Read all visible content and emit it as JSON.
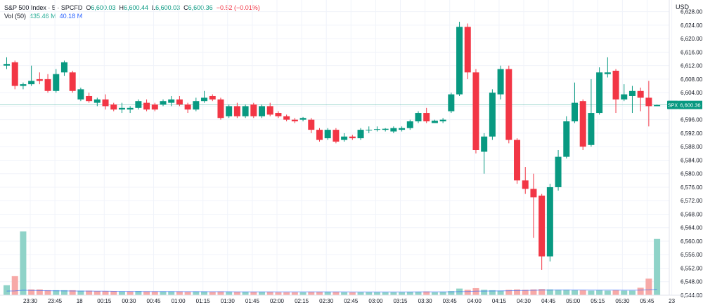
{
  "legend": {
    "symbol": "S&P 500 Index · 5 · SPCFD",
    "open_label": "O",
    "open": "6,600.03",
    "high_label": "H",
    "high": "6,600.44",
    "low_label": "L",
    "low": "6,600.03",
    "close_label": "C",
    "close": "6,600.36",
    "change": "−0.52 (−0.01%)",
    "vol_label": "Vol (50)",
    "vol_value": "435.46 M",
    "vol_ma": "40.18 M"
  },
  "currency": "USD",
  "price_tag": {
    "symbol": "SPX",
    "value": "6,600.36",
    "price": 6600.36
  },
  "colors": {
    "up": "#089981",
    "down": "#f23645",
    "vol_up": "#8fd3c8",
    "vol_down": "#f7a9a7",
    "grid": "#f0f3fa",
    "ma": "#2962ff"
  },
  "chart_data": {
    "type": "candlestick",
    "ylim": [
      6544,
      6630
    ],
    "y_ticks": [
      "6,628.00",
      "6,624.00",
      "6,620.00",
      "6,616.00",
      "6,612.00",
      "6,608.00",
      "6,604.00",
      "6,600.00",
      "6,596.00",
      "6,592.00",
      "6,588.00",
      "6,584.00",
      "6,580.00",
      "6,576.00",
      "6,572.00",
      "6,568.00",
      "6,564.00",
      "6,560.00",
      "6,556.00",
      "6,552.00",
      "6,548.00",
      "6,544.00"
    ],
    "x_ticks": [
      "23:30",
      "23:45",
      "18",
      "00:15",
      "00:30",
      "00:45",
      "01:00",
      "01:15",
      "01:30",
      "01:45",
      "02:00",
      "02:15",
      "02:30",
      "02:45",
      "03:00",
      "03:15",
      "03:30",
      "03:45",
      "04:00",
      "04:15",
      "04:30",
      "04:45",
      "05:00",
      "05:15",
      "05:30",
      "05:45",
      "23"
    ],
    "candles": [
      {
        "o": 6612.0,
        "h": 6614.5,
        "l": 6611.0,
        "c": 6612.5
      },
      {
        "o": 6613.0,
        "h": 6613.5,
        "l": 6605.0,
        "c": 6606.0
      },
      {
        "o": 6606.0,
        "h": 6607.0,
        "l": 6605.0,
        "c": 6606.5
      },
      {
        "o": 6606.5,
        "h": 6612.0,
        "l": 6606.0,
        "c": 6607.5
      },
      {
        "o": 6608.0,
        "h": 6610.0,
        "l": 6606.5,
        "c": 6607.5
      },
      {
        "o": 6608.0,
        "h": 6609.5,
        "l": 6604.0,
        "c": 6604.5
      },
      {
        "o": 6604.5,
        "h": 6611.0,
        "l": 6604.0,
        "c": 6609.5
      },
      {
        "o": 6610.0,
        "h": 6613.5,
        "l": 6609.0,
        "c": 6613.0
      },
      {
        "o": 6610.0,
        "h": 6610.5,
        "l": 6604.0,
        "c": 6604.5
      },
      {
        "o": 6602.0,
        "h": 6605.5,
        "l": 6601.5,
        "c": 6605.0
      },
      {
        "o": 6603.0,
        "h": 6604.0,
        "l": 6601.0,
        "c": 6601.5
      },
      {
        "o": 6601.0,
        "h": 6602.5,
        "l": 6600.0,
        "c": 6602.0
      },
      {
        "o": 6602.0,
        "h": 6603.5,
        "l": 6599.0,
        "c": 6600.0
      },
      {
        "o": 6600.5,
        "h": 6601.0,
        "l": 6598.5,
        "c": 6599.0
      },
      {
        "o": 6599.0,
        "h": 6601.0,
        "l": 6598.0,
        "c": 6599.5
      },
      {
        "o": 6599.0,
        "h": 6600.0,
        "l": 6598.0,
        "c": 6599.5
      },
      {
        "o": 6599.5,
        "h": 6602.0,
        "l": 6599.0,
        "c": 6601.5
      },
      {
        "o": 6601.0,
        "h": 6602.0,
        "l": 6598.5,
        "c": 6599.0
      },
      {
        "o": 6600.5,
        "h": 6601.0,
        "l": 6598.5,
        "c": 6599.0
      },
      {
        "o": 6600.5,
        "h": 6602.0,
        "l": 6600.0,
        "c": 6601.5
      },
      {
        "o": 6601.0,
        "h": 6603.0,
        "l": 6600.0,
        "c": 6602.0
      },
      {
        "o": 6602.0,
        "h": 6603.0,
        "l": 6600.0,
        "c": 6600.5
      },
      {
        "o": 6600.5,
        "h": 6601.0,
        "l": 6598.0,
        "c": 6599.0
      },
      {
        "o": 6599.0,
        "h": 6602.5,
        "l": 6598.5,
        "c": 6601.5
      },
      {
        "o": 6601.5,
        "h": 6604.5,
        "l": 6601.0,
        "c": 6602.5
      },
      {
        "o": 6603.0,
        "h": 6603.5,
        "l": 6601.5,
        "c": 6602.0
      },
      {
        "o": 6602.0,
        "h": 6602.5,
        "l": 6596.0,
        "c": 6596.5
      },
      {
        "o": 6597.0,
        "h": 6600.5,
        "l": 6596.5,
        "c": 6600.0
      },
      {
        "o": 6600.0,
        "h": 6601.0,
        "l": 6596.5,
        "c": 6597.0
      },
      {
        "o": 6597.0,
        "h": 6600.5,
        "l": 6596.5,
        "c": 6600.0
      },
      {
        "o": 6600.5,
        "h": 6601.0,
        "l": 6596.5,
        "c": 6597.0
      },
      {
        "o": 6597.0,
        "h": 6600.5,
        "l": 6596.5,
        "c": 6600.0
      },
      {
        "o": 6600.0,
        "h": 6601.0,
        "l": 6597.0,
        "c": 6597.5
      },
      {
        "o": 6598.0,
        "h": 6598.5,
        "l": 6596.5,
        "c": 6597.0
      },
      {
        "o": 6597.0,
        "h": 6597.5,
        "l": 6595.5,
        "c": 6596.0
      },
      {
        "o": 6596.0,
        "h": 6596.5,
        "l": 6595.0,
        "c": 6595.5
      },
      {
        "o": 6596.0,
        "h": 6596.8,
        "l": 6595.5,
        "c": 6596.5
      },
      {
        "o": 6596.0,
        "h": 6596.5,
        "l": 6592.0,
        "c": 6593.0
      },
      {
        "o": 6593.0,
        "h": 6593.5,
        "l": 6589.5,
        "c": 6590.0
      },
      {
        "o": 6590.5,
        "h": 6593.5,
        "l": 6590.0,
        "c": 6593.0
      },
      {
        "o": 6593.0,
        "h": 6593.5,
        "l": 6589.0,
        "c": 6589.5
      },
      {
        "o": 6590.0,
        "h": 6592.0,
        "l": 6589.5,
        "c": 6591.0
      },
      {
        "o": 6591.0,
        "h": 6591.5,
        "l": 6590.0,
        "c": 6590.5
      },
      {
        "o": 6590.5,
        "h": 6593.5,
        "l": 6590.0,
        "c": 6593.0
      },
      {
        "o": 6593.0,
        "h": 6594.0,
        "l": 6592.0,
        "c": 6593.0
      },
      {
        "o": 6593.0,
        "h": 6594.0,
        "l": 6592.5,
        "c": 6593.2
      },
      {
        "o": 6593.0,
        "h": 6593.5,
        "l": 6592.5,
        "c": 6593.3
      },
      {
        "o": 6592.5,
        "h": 6594.0,
        "l": 6592.0,
        "c": 6593.5
      },
      {
        "o": 6593.0,
        "h": 6594.0,
        "l": 6592.5,
        "c": 6593.5
      },
      {
        "o": 6593.5,
        "h": 6596.0,
        "l": 6593.0,
        "c": 6595.5
      },
      {
        "o": 6595.5,
        "h": 6598.5,
        "l": 6595.0,
        "c": 6598.0
      },
      {
        "o": 6598.0,
        "h": 6599.5,
        "l": 6595.0,
        "c": 6595.5
      },
      {
        "o": 6595.0,
        "h": 6596.0,
        "l": 6595.0,
        "c": 6595.7
      },
      {
        "o": 6595.5,
        "h": 6596.5,
        "l": 6595.0,
        "c": 6596.0
      },
      {
        "o": 6598.5,
        "h": 6604.0,
        "l": 6598.0,
        "c": 6603.5
      },
      {
        "o": 6603.5,
        "h": 6625.0,
        "l": 6603.0,
        "c": 6623.5
      },
      {
        "o": 6623.5,
        "h": 6624.5,
        "l": 6608.0,
        "c": 6610.0
      },
      {
        "o": 6610.0,
        "h": 6611.0,
        "l": 6586.0,
        "c": 6587.0
      },
      {
        "o": 6586.5,
        "h": 6592.0,
        "l": 6580.0,
        "c": 6591.0
      },
      {
        "o": 6591.0,
        "h": 6605.0,
        "l": 6590.0,
        "c": 6604.0
      },
      {
        "o": 6603.5,
        "h": 6612.0,
        "l": 6602.0,
        "c": 6611.0
      },
      {
        "o": 6611.0,
        "h": 6612.0,
        "l": 6589.0,
        "c": 6590.0
      },
      {
        "o": 6590.0,
        "h": 6590.5,
        "l": 6577.0,
        "c": 6578.0
      },
      {
        "o": 6578.0,
        "h": 6582.0,
        "l": 6574.0,
        "c": 6575.5
      },
      {
        "o": 6575.5,
        "h": 6580.0,
        "l": 6561.0,
        "c": 6573.0
      },
      {
        "o": 6573.5,
        "h": 6574.0,
        "l": 6551.5,
        "c": 6555.5
      },
      {
        "o": 6555.5,
        "h": 6577.0,
        "l": 6554.0,
        "c": 6576.0
      },
      {
        "o": 6576.0,
        "h": 6587.0,
        "l": 6575.0,
        "c": 6585.0
      },
      {
        "o": 6585.0,
        "h": 6597.0,
        "l": 6584.5,
        "c": 6595.5
      },
      {
        "o": 6595.5,
        "h": 6607.0,
        "l": 6595.0,
        "c": 6601.0
      },
      {
        "o": 6601.5,
        "h": 6602.0,
        "l": 6587.0,
        "c": 6588.0
      },
      {
        "o": 6588.5,
        "h": 6608.0,
        "l": 6588.0,
        "c": 6598.0
      },
      {
        "o": 6598.0,
        "h": 6611.5,
        "l": 6597.5,
        "c": 6610.0
      },
      {
        "o": 6609.5,
        "h": 6614.5,
        "l": 6608.5,
        "c": 6610.0
      },
      {
        "o": 6610.5,
        "h": 6611.0,
        "l": 6598.0,
        "c": 6602.0
      },
      {
        "o": 6602.0,
        "h": 6606.5,
        "l": 6601.5,
        "c": 6603.5
      },
      {
        "o": 6603.0,
        "h": 6606.0,
        "l": 6598.0,
        "c": 6604.5
      },
      {
        "o": 6604.5,
        "h": 6605.5,
        "l": 6598.5,
        "c": 6602.5
      },
      {
        "o": 6602.5,
        "h": 6607.5,
        "l": 6594.0,
        "c": 6600.0
      },
      {
        "o": 6600.0,
        "h": 6600.5,
        "l": 6600.0,
        "c": 6600.36
      }
    ],
    "volume": [
      {
        "v": 0.12,
        "up": true
      },
      {
        "v": 0.23,
        "up": false
      },
      {
        "v": 0.77,
        "up": true
      },
      {
        "v": 0.07,
        "up": false
      },
      {
        "v": 0.07,
        "up": false
      },
      {
        "v": 0.06,
        "up": false
      },
      {
        "v": 0.06,
        "up": true
      },
      {
        "v": 0.06,
        "up": true
      },
      {
        "v": 0.06,
        "up": false
      },
      {
        "v": 0.055,
        "up": true
      },
      {
        "v": 0.055,
        "up": false
      },
      {
        "v": 0.05,
        "up": false
      },
      {
        "v": 0.05,
        "up": false
      },
      {
        "v": 0.05,
        "up": false
      },
      {
        "v": 0.045,
        "up": true
      },
      {
        "v": 0.045,
        "up": false
      },
      {
        "v": 0.05,
        "up": true
      },
      {
        "v": 0.045,
        "up": false
      },
      {
        "v": 0.045,
        "up": false
      },
      {
        "v": 0.045,
        "up": true
      },
      {
        "v": 0.045,
        "up": true
      },
      {
        "v": 0.045,
        "up": false
      },
      {
        "v": 0.04,
        "up": false
      },
      {
        "v": 0.045,
        "up": true
      },
      {
        "v": 0.045,
        "up": true
      },
      {
        "v": 0.04,
        "up": false
      },
      {
        "v": 0.045,
        "up": false
      },
      {
        "v": 0.04,
        "up": true
      },
      {
        "v": 0.04,
        "up": false
      },
      {
        "v": 0.04,
        "up": true
      },
      {
        "v": 0.04,
        "up": false
      },
      {
        "v": 0.04,
        "up": true
      },
      {
        "v": 0.04,
        "up": false
      },
      {
        "v": 0.035,
        "up": false
      },
      {
        "v": 0.035,
        "up": false
      },
      {
        "v": 0.035,
        "up": false
      },
      {
        "v": 0.035,
        "up": true
      },
      {
        "v": 0.04,
        "up": false
      },
      {
        "v": 0.04,
        "up": false
      },
      {
        "v": 0.04,
        "up": true
      },
      {
        "v": 0.04,
        "up": false
      },
      {
        "v": 0.035,
        "up": true
      },
      {
        "v": 0.035,
        "up": false
      },
      {
        "v": 0.035,
        "up": true
      },
      {
        "v": 0.035,
        "up": true
      },
      {
        "v": 0.035,
        "up": true
      },
      {
        "v": 0.035,
        "up": true
      },
      {
        "v": 0.035,
        "up": true
      },
      {
        "v": 0.035,
        "up": true
      },
      {
        "v": 0.04,
        "up": true
      },
      {
        "v": 0.04,
        "up": true
      },
      {
        "v": 0.045,
        "up": false
      },
      {
        "v": 0.035,
        "up": true
      },
      {
        "v": 0.04,
        "up": true
      },
      {
        "v": 0.05,
        "up": true
      },
      {
        "v": 0.08,
        "up": true
      },
      {
        "v": 0.065,
        "up": false
      },
      {
        "v": 0.085,
        "up": false
      },
      {
        "v": 0.065,
        "up": true
      },
      {
        "v": 0.06,
        "up": true
      },
      {
        "v": 0.055,
        "up": true
      },
      {
        "v": 0.065,
        "up": false
      },
      {
        "v": 0.07,
        "up": false
      },
      {
        "v": 0.065,
        "up": false
      },
      {
        "v": 0.07,
        "up": false
      },
      {
        "v": 0.075,
        "up": false
      },
      {
        "v": 0.07,
        "up": true
      },
      {
        "v": 0.065,
        "up": true
      },
      {
        "v": 0.065,
        "up": true
      },
      {
        "v": 0.06,
        "up": true
      },
      {
        "v": 0.06,
        "up": false
      },
      {
        "v": 0.055,
        "up": true
      },
      {
        "v": 0.06,
        "up": true
      },
      {
        "v": 0.055,
        "up": true
      },
      {
        "v": 0.06,
        "up": false
      },
      {
        "v": 0.055,
        "up": true
      },
      {
        "v": 0.055,
        "up": true
      },
      {
        "v": 0.09,
        "up": false
      },
      {
        "v": 0.2,
        "up": false
      },
      {
        "v": 0.68,
        "up": true
      }
    ],
    "volume_ma": [
      0.05,
      0.052,
      0.06,
      0.058,
      0.056,
      0.054,
      0.053,
      0.052,
      0.051,
      0.05,
      0.05,
      0.049,
      0.048,
      0.047,
      0.046,
      0.046,
      0.045,
      0.045,
      0.044,
      0.044,
      0.044,
      0.043,
      0.043,
      0.043,
      0.042,
      0.042,
      0.042,
      0.042,
      0.041,
      0.041,
      0.041,
      0.041,
      0.041,
      0.04,
      0.04,
      0.04,
      0.04,
      0.04,
      0.04,
      0.04,
      0.04,
      0.04,
      0.039,
      0.039,
      0.039,
      0.039,
      0.039,
      0.039,
      0.039,
      0.039,
      0.04,
      0.04,
      0.04,
      0.04,
      0.041,
      0.043,
      0.045,
      0.048,
      0.05,
      0.051,
      0.052,
      0.054,
      0.056,
      0.057,
      0.059,
      0.061,
      0.062,
      0.063,
      0.063,
      0.063,
      0.063,
      0.062,
      0.062,
      0.061,
      0.061,
      0.06,
      0.06,
      0.061,
      0.064,
      0.07
    ]
  }
}
